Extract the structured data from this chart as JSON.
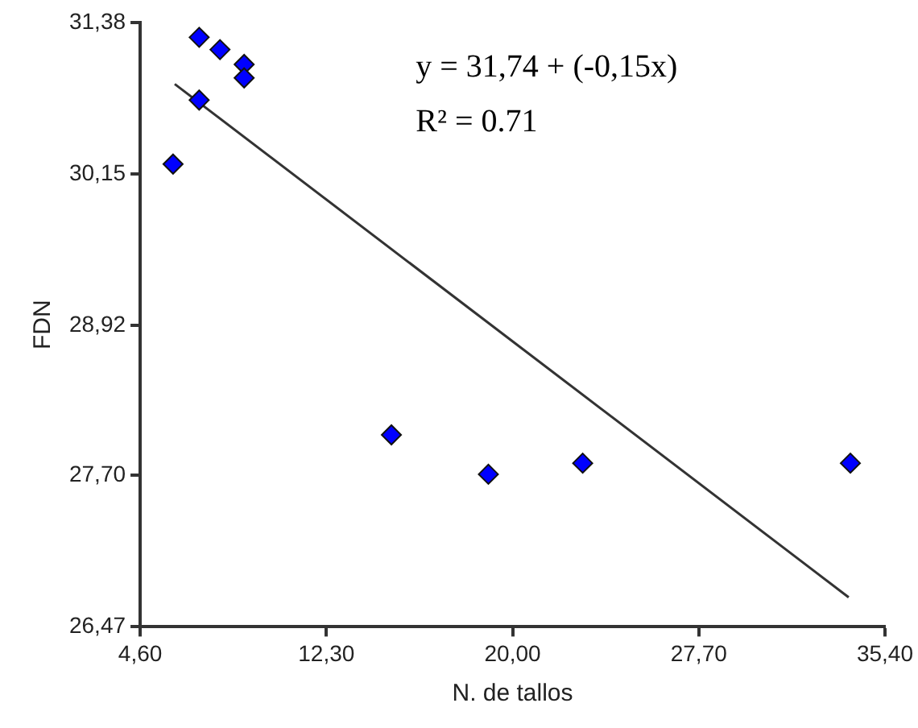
{
  "chart_data": {
    "type": "scatter",
    "xlabel": "N. de tallos",
    "ylabel": "FDN",
    "xlim": [
      4.6,
      35.4
    ],
    "xticks": [
      {
        "value": 4.6,
        "label": "4,60"
      },
      {
        "value": 12.3,
        "label": "12,30"
      },
      {
        "value": 20,
        "label": "20,00"
      },
      {
        "value": 27.7,
        "label": "27,70"
      },
      {
        "value": 35.4,
        "label": "35,40"
      }
    ],
    "ylim": [
      26.47,
      31.38
    ],
    "yticks": [
      {
        "value": 26.47,
        "label": "26,47"
      },
      {
        "value": 27.7,
        "label": "27,70"
      },
      {
        "value": 28.92,
        "label": "28,92"
      },
      {
        "value": 30.15,
        "label": "30,15"
      },
      {
        "value": 31.38,
        "label": "31,38"
      }
    ],
    "grid": false,
    "legend": false,
    "annotations": [
      "y = 31,74 + (-0,15x)",
      "R² = 0.71"
    ],
    "series": [
      {
        "type": "scatter",
        "color": "#0000ff",
        "marker": "diamond",
        "x": [
          7.04,
          7.9,
          8.9,
          8.9,
          7.04,
          5.96,
          14.99,
          19.0,
          22.9,
          33.97
        ],
        "values": [
          31.26,
          31.16,
          31.04,
          30.93,
          30.75,
          30.23,
          28.03,
          27.71,
          27.8,
          27.8
        ]
      },
      {
        "type": "line",
        "color": "#333333",
        "marker": "none",
        "x": [
          6.03,
          33.9
        ],
        "values": [
          30.88,
          26.71
        ]
      }
    ]
  }
}
